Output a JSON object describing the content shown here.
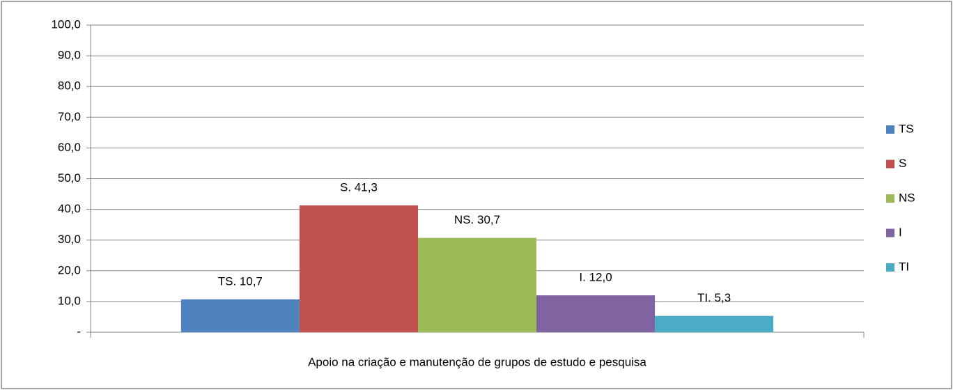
{
  "chart_data": {
    "type": "bar",
    "categories": [
      "Apoio na criação e manutenção de grupos de estudo e pesquisa"
    ],
    "series": [
      {
        "name": "TS",
        "color": "#4f81bd",
        "values": [
          10.7
        ],
        "value_labels": [
          "TS.  10,7"
        ]
      },
      {
        "name": "S",
        "color": "#c0504d",
        "values": [
          41.3
        ],
        "value_labels": [
          "S.  41,3"
        ]
      },
      {
        "name": "NS",
        "color": "#9bbb59",
        "values": [
          30.7
        ],
        "value_labels": [
          "NS.  30,7"
        ]
      },
      {
        "name": "I",
        "color": "#8064a2",
        "values": [
          12.0
        ],
        "value_labels": [
          "I.  12,0"
        ]
      },
      {
        "name": "TI",
        "color": "#4bacc6",
        "values": [
          5.3
        ],
        "value_labels": [
          "TI.  5,3"
        ]
      }
    ],
    "ylim": [
      0,
      100
    ],
    "yticks": [
      {
        "value": 0,
        "label": "-"
      },
      {
        "value": 10,
        "label": "10,0"
      },
      {
        "value": 20,
        "label": "20,0"
      },
      {
        "value": 30,
        "label": "30,0"
      },
      {
        "value": 40,
        "label": "40,0"
      },
      {
        "value": 50,
        "label": "50,0"
      },
      {
        "value": 60,
        "label": "60,0"
      },
      {
        "value": 70,
        "label": "70,0"
      },
      {
        "value": 80,
        "label": "80,0"
      },
      {
        "value": 90,
        "label": "90,0"
      },
      {
        "value": 100,
        "label": "100,0"
      }
    ],
    "grid": true,
    "legend": "right"
  }
}
